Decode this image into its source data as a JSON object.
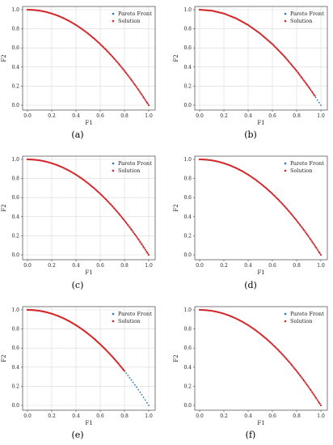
{
  "chart_data": [
    {
      "caption": "(a)",
      "type": "scatter",
      "xlabel": "F1",
      "ylabel": "F2",
      "xlim": [
        0.0,
        1.0
      ],
      "ylim": [
        0.0,
        1.0
      ],
      "xticks": [
        "0.0",
        "0.2",
        "0.4",
        "0.6",
        "0.8",
        "1.0"
      ],
      "yticks": [
        "0.0",
        "0.2",
        "0.4",
        "0.6",
        "0.8",
        "1.0"
      ],
      "grid": true,
      "legend_position": "top-right",
      "series": [
        {
          "name": "Pareto Front",
          "color": "#1f77b4",
          "points": [
            [
              0.0,
              1.0
            ],
            [
              0.1,
              0.99
            ],
            [
              0.2,
              0.96
            ],
            [
              0.3,
              0.91
            ],
            [
              0.4,
              0.84
            ],
            [
              0.5,
              0.75
            ],
            [
              0.6,
              0.64
            ],
            [
              0.7,
              0.51
            ],
            [
              0.8,
              0.36
            ],
            [
              0.9,
              0.19
            ],
            [
              1.0,
              0.0
            ]
          ]
        },
        {
          "name": "Solution",
          "color": "#d62728",
          "points": [
            [
              0.0,
              1.0
            ],
            [
              0.05,
              0.998
            ],
            [
              0.1,
              0.99
            ],
            [
              0.15,
              0.978
            ],
            [
              0.2,
              0.96
            ],
            [
              0.25,
              0.938
            ],
            [
              0.3,
              0.91
            ],
            [
              0.35,
              0.878
            ],
            [
              0.4,
              0.84
            ],
            [
              0.45,
              0.798
            ],
            [
              0.5,
              0.75
            ],
            [
              0.55,
              0.698
            ],
            [
              0.6,
              0.64
            ],
            [
              0.65,
              0.578
            ],
            [
              0.7,
              0.51
            ],
            [
              0.75,
              0.438
            ],
            [
              0.8,
              0.36
            ],
            [
              0.85,
              0.278
            ],
            [
              0.9,
              0.19
            ],
            [
              0.95,
              0.098
            ],
            [
              1.0,
              0.0
            ]
          ]
        }
      ]
    },
    {
      "caption": "(b)",
      "type": "scatter",
      "xlabel": "F1",
      "ylabel": "F2",
      "xlim": [
        0.0,
        1.0
      ],
      "ylim": [
        0.0,
        1.0
      ],
      "xticks": [
        "0.0",
        "0.2",
        "0.4",
        "0.6",
        "0.8",
        "1.0"
      ],
      "yticks": [
        "0.0",
        "0.2",
        "0.4",
        "0.6",
        "0.8",
        "1.0"
      ],
      "grid": true,
      "legend_position": "top-right",
      "series": [
        {
          "name": "Pareto Front",
          "color": "#1f77b4",
          "points": [
            [
              0.0,
              1.0
            ],
            [
              0.1,
              0.99
            ],
            [
              0.2,
              0.96
            ],
            [
              0.3,
              0.91
            ],
            [
              0.4,
              0.84
            ],
            [
              0.5,
              0.75
            ],
            [
              0.6,
              0.64
            ],
            [
              0.7,
              0.51
            ],
            [
              0.8,
              0.36
            ],
            [
              0.9,
              0.19
            ],
            [
              1.0,
              0.0
            ]
          ]
        },
        {
          "name": "Solution",
          "color": "#d62728",
          "points": [
            [
              0.0,
              1.0
            ],
            [
              0.1,
              0.99
            ],
            [
              0.2,
              0.96
            ],
            [
              0.3,
              0.91
            ],
            [
              0.4,
              0.84
            ],
            [
              0.5,
              0.75
            ],
            [
              0.6,
              0.64
            ],
            [
              0.7,
              0.51
            ],
            [
              0.8,
              0.36
            ],
            [
              0.9,
              0.19
            ],
            [
              0.95,
              0.098
            ]
          ]
        }
      ]
    },
    {
      "caption": "(c)",
      "type": "scatter",
      "xlabel": "F1",
      "ylabel": "F2",
      "xlim": [
        0.0,
        1.0
      ],
      "ylim": [
        0.0,
        1.0
      ],
      "xticks": [
        "0.0",
        "0.2",
        "0.4",
        "0.6",
        "0.8",
        "1.0"
      ],
      "yticks": [
        "0.0",
        "0.2",
        "0.4",
        "0.6",
        "0.8",
        "1.0"
      ],
      "grid": true,
      "legend_position": "top-right",
      "series": [
        {
          "name": "Pareto Front",
          "color": "#1f77b4",
          "points": [
            [
              0.0,
              1.0
            ],
            [
              0.1,
              0.99
            ],
            [
              0.2,
              0.96
            ],
            [
              0.3,
              0.91
            ],
            [
              0.4,
              0.84
            ],
            [
              0.5,
              0.75
            ],
            [
              0.6,
              0.64
            ],
            [
              0.7,
              0.51
            ],
            [
              0.8,
              0.36
            ],
            [
              0.9,
              0.19
            ],
            [
              1.0,
              0.0
            ]
          ]
        },
        {
          "name": "Solution",
          "color": "#d62728",
          "points": [
            [
              0.0,
              1.0
            ],
            [
              0.05,
              0.998
            ],
            [
              0.1,
              0.99
            ],
            [
              0.15,
              0.978
            ],
            [
              0.2,
              0.96
            ],
            [
              0.25,
              0.938
            ],
            [
              0.3,
              0.91
            ],
            [
              0.35,
              0.878
            ],
            [
              0.4,
              0.84
            ],
            [
              0.45,
              0.798
            ],
            [
              0.5,
              0.75
            ],
            [
              0.55,
              0.698
            ],
            [
              0.6,
              0.64
            ],
            [
              0.65,
              0.578
            ],
            [
              0.7,
              0.51
            ],
            [
              0.75,
              0.438
            ],
            [
              0.8,
              0.36
            ],
            [
              0.85,
              0.278
            ],
            [
              0.9,
              0.19
            ],
            [
              0.95,
              0.098
            ],
            [
              1.0,
              0.0
            ]
          ]
        }
      ]
    },
    {
      "caption": "(d)",
      "type": "scatter",
      "xlabel": "F1",
      "ylabel": "F2",
      "xlim": [
        0.0,
        1.0
      ],
      "ylim": [
        0.0,
        1.0
      ],
      "xticks": [
        "0.0",
        "0.2",
        "0.4",
        "0.6",
        "0.8",
        "1.0"
      ],
      "yticks": [
        "0.0",
        "0.2",
        "0.4",
        "0.6",
        "0.8",
        "1.0"
      ],
      "grid": false,
      "legend_position": "top-right",
      "series": [
        {
          "name": "Pareto Front",
          "color": "#1f77b4",
          "points": [
            [
              0.0,
              1.0
            ],
            [
              0.1,
              0.99
            ],
            [
              0.2,
              0.96
            ],
            [
              0.3,
              0.91
            ],
            [
              0.4,
              0.84
            ],
            [
              0.5,
              0.75
            ],
            [
              0.6,
              0.64
            ],
            [
              0.7,
              0.51
            ],
            [
              0.8,
              0.36
            ],
            [
              0.9,
              0.19
            ],
            [
              1.0,
              0.0
            ]
          ]
        },
        {
          "name": "Solution",
          "color": "#d62728",
          "points": [
            [
              0.0,
              1.0
            ],
            [
              0.05,
              0.998
            ],
            [
              0.1,
              0.99
            ],
            [
              0.15,
              0.978
            ],
            [
              0.2,
              0.96
            ],
            [
              0.25,
              0.938
            ],
            [
              0.3,
              0.91
            ],
            [
              0.35,
              0.878
            ],
            [
              0.4,
              0.84
            ],
            [
              0.45,
              0.798
            ],
            [
              0.5,
              0.75
            ],
            [
              0.55,
              0.698
            ],
            [
              0.6,
              0.64
            ],
            [
              0.65,
              0.578
            ],
            [
              0.7,
              0.51
            ],
            [
              0.75,
              0.438
            ],
            [
              0.8,
              0.36
            ],
            [
              0.85,
              0.278
            ],
            [
              0.9,
              0.19
            ],
            [
              0.95,
              0.098
            ],
            [
              1.0,
              0.0
            ]
          ]
        }
      ]
    },
    {
      "caption": "(e)",
      "type": "scatter",
      "xlabel": "F1",
      "ylabel": "F2",
      "xlim": [
        0.0,
        1.0
      ],
      "ylim": [
        0.0,
        1.0
      ],
      "xticks": [
        "0.0",
        "0.2",
        "0.4",
        "0.6",
        "0.8",
        "1.0"
      ],
      "yticks": [
        "0.0",
        "0.2",
        "0.4",
        "0.6",
        "0.8",
        "1.0"
      ],
      "grid": true,
      "legend_position": "top-right",
      "series": [
        {
          "name": "Pareto Front",
          "color": "#1f77b4",
          "points": [
            [
              0.0,
              1.0
            ],
            [
              0.1,
              0.99
            ],
            [
              0.2,
              0.96
            ],
            [
              0.3,
              0.91
            ],
            [
              0.4,
              0.84
            ],
            [
              0.5,
              0.75
            ],
            [
              0.6,
              0.64
            ],
            [
              0.7,
              0.51
            ],
            [
              0.8,
              0.36
            ],
            [
              0.85,
              0.278
            ],
            [
              0.9,
              0.19
            ],
            [
              0.95,
              0.098
            ],
            [
              1.0,
              0.0
            ]
          ]
        },
        {
          "name": "Solution",
          "color": "#d62728",
          "points": [
            [
              0.0,
              1.0
            ],
            [
              0.05,
              0.998
            ],
            [
              0.1,
              0.99
            ],
            [
              0.15,
              0.978
            ],
            [
              0.2,
              0.96
            ],
            [
              0.25,
              0.938
            ],
            [
              0.3,
              0.91
            ],
            [
              0.35,
              0.878
            ],
            [
              0.4,
              0.84
            ],
            [
              0.45,
              0.798
            ],
            [
              0.5,
              0.75
            ],
            [
              0.55,
              0.698
            ],
            [
              0.6,
              0.64
            ],
            [
              0.65,
              0.578
            ],
            [
              0.7,
              0.51
            ],
            [
              0.75,
              0.438
            ],
            [
              0.8,
              0.36
            ]
          ]
        }
      ]
    },
    {
      "caption": "(f)",
      "type": "scatter",
      "xlabel": "F1",
      "ylabel": "F2",
      "xlim": [
        0.0,
        1.0
      ],
      "ylim": [
        0.0,
        1.0
      ],
      "xticks": [
        "0.0",
        "0.2",
        "0.4",
        "0.6",
        "0.8",
        "1.0"
      ],
      "yticks": [
        "0.0",
        "0.2",
        "0.4",
        "0.6",
        "0.8",
        "1.0"
      ],
      "grid": false,
      "legend_position": "top-right",
      "series": [
        {
          "name": "Pareto Front",
          "color": "#1f77b4",
          "points": [
            [
              0.0,
              1.0
            ],
            [
              0.1,
              0.99
            ],
            [
              0.2,
              0.96
            ],
            [
              0.3,
              0.91
            ],
            [
              0.4,
              0.84
            ],
            [
              0.5,
              0.75
            ],
            [
              0.6,
              0.64
            ],
            [
              0.7,
              0.51
            ],
            [
              0.8,
              0.36
            ],
            [
              0.9,
              0.19
            ],
            [
              1.0,
              0.0
            ]
          ]
        },
        {
          "name": "Solution",
          "color": "#d62728",
          "points": [
            [
              0.0,
              1.0
            ],
            [
              0.05,
              0.998
            ],
            [
              0.1,
              0.99
            ],
            [
              0.15,
              0.978
            ],
            [
              0.2,
              0.96
            ],
            [
              0.25,
              0.938
            ],
            [
              0.3,
              0.91
            ],
            [
              0.35,
              0.878
            ],
            [
              0.4,
              0.84
            ],
            [
              0.45,
              0.798
            ],
            [
              0.5,
              0.75
            ],
            [
              0.55,
              0.698
            ],
            [
              0.6,
              0.64
            ],
            [
              0.65,
              0.578
            ],
            [
              0.7,
              0.51
            ],
            [
              0.75,
              0.438
            ],
            [
              0.8,
              0.36
            ],
            [
              0.85,
              0.278
            ],
            [
              0.9,
              0.19
            ],
            [
              0.95,
              0.098
            ],
            [
              1.0,
              0.0
            ]
          ]
        }
      ]
    }
  ]
}
